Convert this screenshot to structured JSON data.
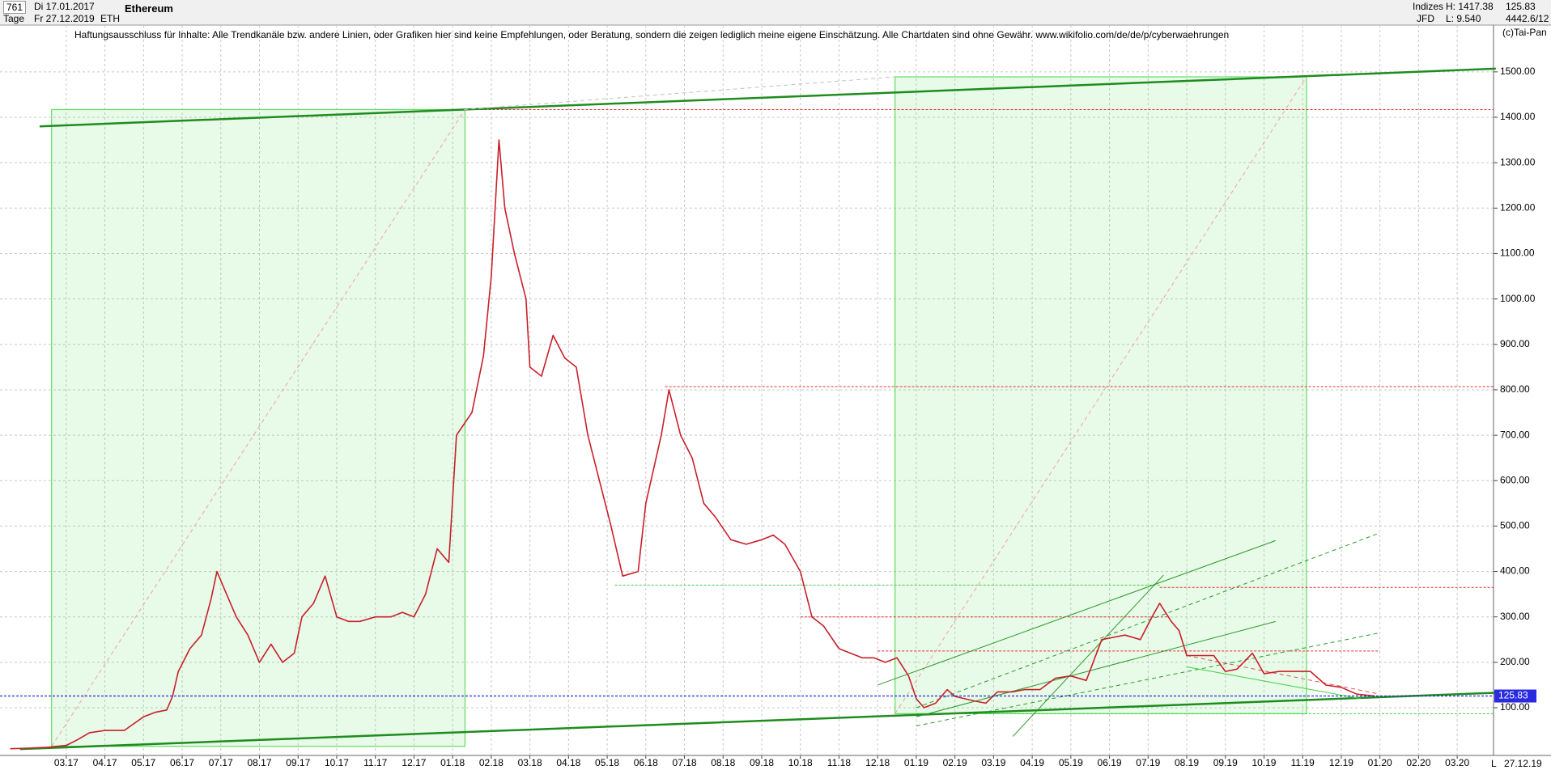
{
  "header": {
    "count": "761",
    "start": "Di 17.01.2017",
    "period": "Tage",
    "end": "Fr 27.12.2019",
    "symbol": "ETH",
    "name": "Ethereum",
    "group": "Indizes",
    "broker": "JFD",
    "high": "H: 1417.38",
    "low": "L: 9.540",
    "last": "125.83",
    "extra": "4442.6/12",
    "copyright": "(c)Tai-Pan",
    "disclaimer": "Haftungsausschluss für Inhalte: Alle Trendkanäle bzw. andere Linien, oder Grafiken hier sind keine Empfehlungen, oder Beratung, sondern die zeigen lediglich meine eigene Einschätzung. Alle Chartdaten sind ohne Gewähr.  www.wikifolio.com/de/de/p/cyberwaehrungen",
    "date_label": "27.12.19",
    "scale_mode": "L"
  },
  "chart_data": {
    "type": "line",
    "title": "Ethereum",
    "color": "#c8202a",
    "x": [
      0.55,
      1.0,
      1.5,
      2.0,
      2.3,
      2.6,
      3.0,
      3.5,
      4.0,
      4.3,
      4.6,
      4.75,
      4.9,
      5.2,
      5.5,
      5.75,
      5.9,
      6.1,
      6.4,
      6.7,
      7.0,
      7.3,
      7.6,
      7.9,
      8.1,
      8.4,
      8.7,
      9.0,
      9.3,
      9.6,
      10.0,
      10.4,
      10.7,
      11.0,
      11.3,
      11.6,
      11.9,
      12.1,
      12.5,
      12.8,
      13.0,
      13.2,
      13.35,
      13.6,
      13.9,
      14.0,
      14.3,
      14.6,
      14.9,
      15.2,
      15.5,
      15.8,
      16.1,
      16.4,
      16.8,
      17.0,
      17.4,
      17.6,
      17.9,
      18.2,
      18.5,
      18.8,
      19.2,
      19.6,
      20.0,
      20.3,
      20.6,
      21.0,
      21.3,
      21.6,
      22.0,
      22.3,
      22.6,
      22.9,
      23.2,
      23.5,
      23.8,
      24.0,
      24.2,
      24.5,
      24.8,
      25.0,
      25.5,
      25.8,
      26.1,
      26.5,
      26.8,
      27.2,
      27.6,
      28.0,
      28.4,
      28.8,
      29.1,
      29.4,
      29.8,
      30.1,
      30.3,
      30.6,
      30.8,
      31.0,
      31.3,
      31.7,
      32.0,
      32.3,
      32.7,
      33.0,
      33.4,
      33.8,
      34.2,
      34.6,
      35.0,
      35.4,
      35.87
    ],
    "values": [
      9.8,
      11,
      13,
      17,
      30,
      45,
      50,
      50,
      80,
      90,
      95,
      125,
      180,
      230,
      260,
      340,
      400,
      360,
      300,
      260,
      200,
      240,
      200,
      220,
      300,
      330,
      390,
      300,
      290,
      290,
      300,
      300,
      310,
      300,
      350,
      450,
      420,
      700,
      750,
      875,
      1050,
      1350,
      1200,
      1100,
      1000,
      850,
      830,
      920,
      870,
      850,
      700,
      600,
      500,
      390,
      400,
      550,
      700,
      800,
      700,
      650,
      550,
      520,
      470,
      460,
      470,
      480,
      460,
      400,
      300,
      280,
      230,
      220,
      210,
      210,
      200,
      210,
      170,
      120,
      100,
      110,
      140,
      125,
      115,
      110,
      135,
      135,
      140,
      140,
      165,
      170,
      160,
      250,
      255,
      260,
      250,
      300,
      330,
      290,
      270,
      215,
      215,
      215,
      180,
      185,
      220,
      175,
      180,
      180,
      180,
      150,
      145,
      130,
      125.83
    ],
    "current_price": 125.83,
    "xlim": [
      0.285,
      38.94
    ],
    "ylim": [
      -5,
      1603
    ],
    "xticks": [
      {
        "value": 2,
        "label": "03.17"
      },
      {
        "value": 3,
        "label": "04.17"
      },
      {
        "value": 4,
        "label": "05.17"
      },
      {
        "value": 5,
        "label": "06.17"
      },
      {
        "value": 6,
        "label": "07.17"
      },
      {
        "value": 7,
        "label": "08.17"
      },
      {
        "value": 8,
        "label": "09.17"
      },
      {
        "value": 9,
        "label": "10.17"
      },
      {
        "value": 10,
        "label": "11.17"
      },
      {
        "value": 11,
        "label": "12.17"
      },
      {
        "value": 12,
        "label": "01.18"
      },
      {
        "value": 13,
        "label": "02.18"
      },
      {
        "value": 14,
        "label": "03.18"
      },
      {
        "value": 15,
        "label": "04.18"
      },
      {
        "value": 16,
        "label": "05.18"
      },
      {
        "value": 17,
        "label": "06.18"
      },
      {
        "value": 18,
        "label": "07.18"
      },
      {
        "value": 19,
        "label": "08.18"
      },
      {
        "value": 20,
        "label": "09.18"
      },
      {
        "value": 21,
        "label": "10.18"
      },
      {
        "value": 22,
        "label": "11.18"
      },
      {
        "value": 23,
        "label": "12.18"
      },
      {
        "value": 24,
        "label": "01.19"
      },
      {
        "value": 25,
        "label": "02.19"
      },
      {
        "value": 26,
        "label": "03.19"
      },
      {
        "value": 27,
        "label": "04.19"
      },
      {
        "value": 28,
        "label": "05.19"
      },
      {
        "value": 29,
        "label": "06.19"
      },
      {
        "value": 30,
        "label": "07.19"
      },
      {
        "value": 31,
        "label": "08.19"
      },
      {
        "value": 32,
        "label": "09.19"
      },
      {
        "value": 33,
        "label": "10.19"
      },
      {
        "value": 34,
        "label": "11.19"
      },
      {
        "value": 35,
        "label": "12.19"
      },
      {
        "value": 36,
        "label": "01.20"
      },
      {
        "value": 37,
        "label": "02.20"
      },
      {
        "value": 38,
        "label": "03.20"
      }
    ],
    "yticks": [
      {
        "value": 100,
        "label": "100.00"
      },
      {
        "value": 200,
        "label": "200.00"
      },
      {
        "value": 300,
        "label": "300.00"
      },
      {
        "value": 400,
        "label": "400.00"
      },
      {
        "value": 500,
        "label": "500.00"
      },
      {
        "value": 600,
        "label": "600.00"
      },
      {
        "value": 700,
        "label": "700.00"
      },
      {
        "value": 800,
        "label": "800.00"
      },
      {
        "value": 900,
        "label": "900.00"
      },
      {
        "value": 1000,
        "label": "1000.00"
      },
      {
        "value": 1100,
        "label": "1100.00"
      },
      {
        "value": 1200,
        "label": "1200.00"
      },
      {
        "value": 1300,
        "label": "1300.00"
      },
      {
        "value": 1400,
        "label": "1400.00"
      },
      {
        "value": 1500,
        "label": "1500.00"
      }
    ],
    "grid": true,
    "boxes": [
      [
        1.62,
        15,
        12.32,
        1417
      ],
      [
        23.45,
        87,
        34.1,
        1489
      ]
    ],
    "box_color": "#5fdc5f",
    "hlines": [
      {
        "y": 1417,
        "from": 12.3,
        "to": 38.94,
        "color": "#e03030"
      },
      {
        "y": 807,
        "from": 17.5,
        "to": 38.94,
        "color": "#e03030"
      },
      {
        "y": 370,
        "from": 16.2,
        "to": 30.3,
        "color": "#40d040"
      },
      {
        "y": 365,
        "from": 30.3,
        "to": 38.94,
        "color": "#e03030"
      },
      {
        "y": 300,
        "from": 21,
        "to": 30.5,
        "color": "#e03030"
      },
      {
        "y": 225,
        "from": 23,
        "to": 36,
        "color": "#e03030"
      },
      {
        "y": 87,
        "from": 24,
        "to": 38.94,
        "color": "#40d040"
      }
    ],
    "trendlines": [
      {
        "points": [
          [
            1.31,
            1380
          ],
          [
            39,
            1507
          ]
        ],
        "color": "#1e8c1e",
        "width": 2.5,
        "dashed": false
      },
      {
        "points": [
          [
            0.8,
            9
          ],
          [
            39,
            133
          ]
        ],
        "color": "#1e8c1e",
        "width": 2.5,
        "dashed": false
      },
      {
        "points": [
          [
            1.62,
            15
          ],
          [
            12.32,
            1417
          ]
        ],
        "color": "#f4a0a0",
        "width": 1,
        "dashed": true
      },
      {
        "points": [
          [
            23.45,
            87
          ],
          [
            34.1,
            1489
          ]
        ],
        "color": "#f4a0a0",
        "width": 1,
        "dashed": true
      },
      {
        "points": [
          [
            12.3,
            1417
          ],
          [
            23.45,
            1489
          ]
        ],
        "color": "#c0c0c0",
        "width": 1,
        "dashed": true
      },
      {
        "points": [
          [
            23,
            150
          ],
          [
            33.3,
            468
          ]
        ],
        "color": "#2a9a2a",
        "width": 1,
        "dashed": false
      },
      {
        "points": [
          [
            24,
            80
          ],
          [
            33.3,
            290
          ]
        ],
        "color": "#2a9a2a",
        "width": 1,
        "dashed": false
      },
      {
        "points": [
          [
            26.5,
            37
          ],
          [
            30.4,
            392
          ]
        ],
        "color": "#2a9a2a",
        "width": 1,
        "dashed": false
      },
      {
        "points": [
          [
            24,
            100
          ],
          [
            36,
            485
          ]
        ],
        "color": "#2a9a2a",
        "width": 1,
        "dashed": true
      },
      {
        "points": [
          [
            24,
            60
          ],
          [
            36,
            265
          ]
        ],
        "color": "#2a9a2a",
        "width": 1,
        "dashed": true
      },
      {
        "points": [
          [
            31,
            215
          ],
          [
            36,
            130
          ]
        ],
        "color": "#e05050",
        "width": 1,
        "dashed": true
      },
      {
        "points": [
          [
            31,
            190
          ],
          [
            35.5,
            120
          ]
        ],
        "color": "#40d040",
        "width": 1,
        "dashed": false
      }
    ]
  }
}
